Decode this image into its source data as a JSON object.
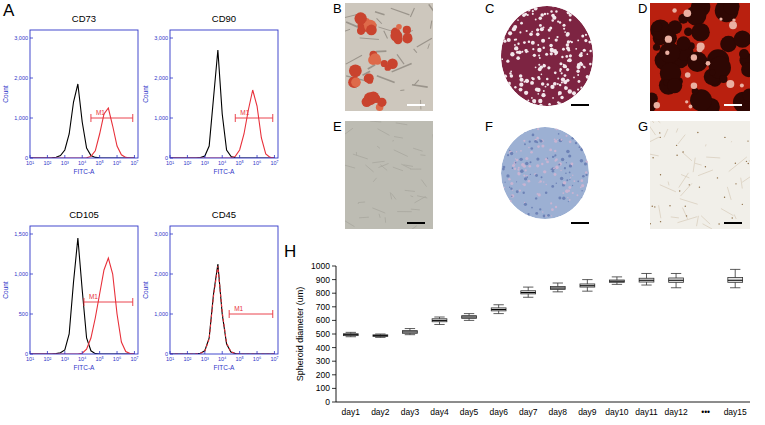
{
  "panel_labels": [
    "A",
    "B",
    "C",
    "D",
    "E",
    "F",
    "G",
    "H"
  ],
  "chart_data": [
    {
      "type": "line",
      "title": "CD73",
      "x_label": "FITC-A",
      "y_label": "Count",
      "log": "x",
      "x": [
        10,
        17.78,
        31.62,
        56.23,
        100,
        177.8,
        316.2,
        562.3,
        1000,
        1778,
        3162,
        5623,
        10000,
        17783,
        31623,
        56234,
        100000,
        177828,
        316228,
        562341,
        1000000,
        1778279,
        3162278,
        5623413,
        10000000
      ],
      "xlim": [
        10,
        16000000
      ],
      "xticks": [
        {
          "value": 10,
          "label": "10¹"
        },
        {
          "value": 100,
          "label": "10²"
        },
        {
          "value": 1000,
          "label": "10³"
        },
        {
          "value": 10000,
          "label": "10⁴"
        },
        {
          "value": 100000,
          "label": "10⁵"
        },
        {
          "value": 1000000,
          "label": "10⁶"
        },
        {
          "value": 10000000,
          "label": "10⁷"
        }
      ],
      "ylim": [
        0,
        3200
      ],
      "yticks": [
        0,
        {
          "value": 1000,
          "label": "1,000"
        },
        {
          "value": 2000,
          "label": "2,000"
        },
        {
          "value": 3000,
          "label": "3,000"
        }
      ],
      "series": [
        {
          "color": "#000000",
          "line_style": "solid",
          "values": [
            0,
            0,
            0,
            0,
            0,
            5,
            20,
            60,
            200,
            600,
            1400,
            1850,
            900,
            250,
            60,
            15,
            5,
            0,
            0,
            0,
            0,
            0,
            0,
            0,
            0
          ]
        },
        {
          "color": "#e8303a",
          "line_style": "solid",
          "values": [
            0,
            0,
            0,
            0,
            0,
            0,
            0,
            0,
            0,
            0,
            0,
            0,
            0,
            5,
            40,
            180,
            600,
            1100,
            1250,
            800,
            300,
            80,
            15,
            0,
            0
          ]
        }
      ],
      "annotations": [
        {
          "text": "M1",
          "x": [
            31623,
            8000000
          ],
          "y": 1000
        }
      ]
    },
    {
      "type": "line",
      "title": "CD90",
      "x_label": "FITC-A",
      "y_label": "Count",
      "log": "x",
      "x": [
        10,
        17.78,
        31.62,
        56.23,
        100,
        177.8,
        316.2,
        562.3,
        1000,
        1778,
        3162,
        5623,
        10000,
        17783,
        31623,
        56234,
        100000,
        177828,
        316228,
        562341,
        1000000,
        1778279,
        3162278,
        5623413,
        10000000
      ],
      "xlim": [
        10,
        16000000
      ],
      "xticks": [
        {
          "value": 10,
          "label": "10¹"
        },
        {
          "value": 100,
          "label": "10²"
        },
        {
          "value": 1000,
          "label": "10³"
        },
        {
          "value": 10000,
          "label": "10⁴"
        },
        {
          "value": 100000,
          "label": "10⁵"
        },
        {
          "value": 1000000,
          "label": "10⁶"
        },
        {
          "value": 10000000,
          "label": "10⁷"
        }
      ],
      "ylim": [
        0,
        3200
      ],
      "yticks": [
        0,
        {
          "value": 1000,
          "label": "1,000"
        },
        {
          "value": 2000,
          "label": "2,000"
        },
        {
          "value": 3000,
          "label": "3,000"
        }
      ],
      "series": [
        {
          "color": "#000000",
          "line_style": "solid",
          "values": [
            0,
            0,
            0,
            0,
            0,
            0,
            0,
            10,
            50,
            300,
            1500,
            2700,
            1100,
            200,
            40,
            5,
            0,
            0,
            0,
            0,
            0,
            0,
            0,
            0,
            0
          ]
        },
        {
          "color": "#e8303a",
          "line_style": "solid",
          "values": [
            0,
            0,
            0,
            0,
            0,
            0,
            0,
            0,
            0,
            0,
            0,
            0,
            0,
            0,
            5,
            40,
            200,
            600,
            1200,
            1700,
            1300,
            500,
            100,
            15,
            0
          ]
        }
      ],
      "annotations": [
        {
          "text": "M1",
          "x": [
            56234,
            8000000
          ],
          "y": 1000
        }
      ]
    },
    {
      "type": "line",
      "title": "CD105",
      "x_label": "FITC-A",
      "y_label": "Count",
      "log": "x",
      "x": [
        10,
        17.78,
        31.62,
        56.23,
        100,
        177.8,
        316.2,
        562.3,
        1000,
        1778,
        3162,
        5623,
        10000,
        17783,
        31623,
        56234,
        100000,
        177828,
        316228,
        562341,
        1000000,
        1778279,
        3162278,
        5623413,
        10000000
      ],
      "xlim": [
        10,
        16000000
      ],
      "xticks": [
        {
          "value": 10,
          "label": "10¹"
        },
        {
          "value": 100,
          "label": "10²"
        },
        {
          "value": 1000,
          "label": "10³"
        },
        {
          "value": 10000,
          "label": "10⁴"
        },
        {
          "value": 100000,
          "label": "10⁵"
        },
        {
          "value": 1000000,
          "label": "10⁶"
        },
        {
          "value": 10000000,
          "label": "10⁷"
        }
      ],
      "ylim": [
        0,
        1600
      ],
      "yticks": [
        0,
        500,
        {
          "value": 1000,
          "label": "1,000"
        },
        {
          "value": 1500,
          "label": "1,500"
        }
      ],
      "series": [
        {
          "color": "#000000",
          "line_style": "solid",
          "values": [
            0,
            0,
            0,
            0,
            0,
            0,
            5,
            15,
            50,
            250,
            900,
            1450,
            800,
            200,
            40,
            5,
            0,
            0,
            0,
            0,
            0,
            0,
            0,
            0,
            0
          ]
        },
        {
          "color": "#e8303a",
          "line_style": "solid",
          "values": [
            0,
            0,
            0,
            0,
            0,
            0,
            0,
            0,
            0,
            0,
            0,
            0,
            10,
            60,
            200,
            450,
            750,
            1050,
            1200,
            1000,
            500,
            150,
            30,
            5,
            0
          ]
        }
      ],
      "annotations": [
        {
          "text": "M1",
          "x": [
            12589,
            8000000
          ],
          "y": 650
        }
      ]
    },
    {
      "type": "line",
      "title": "CD45",
      "x_label": "FITC-A",
      "y_label": "Count",
      "log": "x",
      "x": [
        10,
        17.78,
        31.62,
        56.23,
        100,
        177.8,
        316.2,
        562.3,
        1000,
        1778,
        3162,
        5623,
        10000,
        17783,
        31623,
        56234,
        100000,
        177828,
        316228,
        562341,
        1000000,
        1778279,
        3162278,
        5623413,
        10000000
      ],
      "xlim": [
        10,
        16000000
      ],
      "xticks": [
        {
          "value": 10,
          "label": "10¹"
        },
        {
          "value": 100,
          "label": "10²"
        },
        {
          "value": 1000,
          "label": "10³"
        },
        {
          "value": 10000,
          "label": "10⁴"
        },
        {
          "value": 100000,
          "label": "10⁵"
        },
        {
          "value": 1000000,
          "label": "10⁶"
        },
        {
          "value": 10000000,
          "label": "10⁷"
        }
      ],
      "ylim": [
        0,
        3200
      ],
      "yticks": [
        0,
        {
          "value": 1000,
          "label": "1,000"
        },
        {
          "value": 2000,
          "label": "2,000"
        },
        {
          "value": 3000,
          "label": "3,000"
        }
      ],
      "series": [
        {
          "color": "#000000",
          "line_style": "solid",
          "values": [
            0,
            0,
            0,
            0,
            0,
            0,
            5,
            20,
            80,
            400,
            1500,
            2250,
            1000,
            250,
            50,
            10,
            0,
            0,
            0,
            0,
            0,
            0,
            0,
            0,
            0
          ]
        },
        {
          "color": "#e8303a",
          "line_style": "dashed",
          "values": [
            0,
            0,
            0,
            0,
            0,
            0,
            5,
            18,
            70,
            380,
            1450,
            2200,
            1050,
            270,
            55,
            12,
            0,
            0,
            0,
            0,
            0,
            0,
            0,
            0,
            0
          ]
        }
      ],
      "annotations": [
        {
          "text": "M1",
          "x": [
            25119,
            8000000
          ],
          "y": 1000
        }
      ]
    },
    {
      "type": "box",
      "y_label": "Spheroid diameter (um)",
      "categories": [
        "day1",
        "day2",
        "day3",
        "day4",
        "day5",
        "day6",
        "day7",
        "day8",
        "day9",
        "day10",
        "day11",
        "day12",
        "•••",
        "day15"
      ],
      "min": [
        480,
        475,
        495,
        570,
        600,
        650,
        770,
        810,
        815,
        865,
        860,
        840,
        null,
        840
      ],
      "q1": [
        488,
        482,
        505,
        590,
        615,
        670,
        795,
        828,
        845,
        880,
        882,
        880,
        null,
        880
      ],
      "median": [
        495,
        488,
        515,
        600,
        625,
        680,
        805,
        838,
        855,
        888,
        895,
        895,
        null,
        895
      ],
      "q3": [
        502,
        494,
        525,
        612,
        635,
        692,
        818,
        850,
        868,
        897,
        910,
        912,
        null,
        915
      ],
      "max": [
        512,
        500,
        540,
        625,
        650,
        715,
        845,
        875,
        900,
        920,
        945,
        945,
        null,
        975
      ],
      "ylim": [
        0,
        1000
      ],
      "yticks": [
        0,
        100,
        200,
        300,
        400,
        500,
        600,
        700,
        800,
        900,
        1000
      ],
      "color": "#e4e4e4"
    }
  ]
}
